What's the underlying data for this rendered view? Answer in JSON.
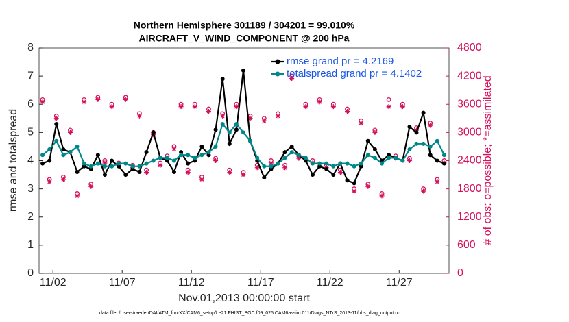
{
  "chart_data": {
    "type": "line",
    "title": "Northern Hemisphere 301189 / 304201 = 99.010%",
    "subtitle": "AIRCRAFT_V_WIND_COMPONENT @ 200 hPa",
    "x_label": "Nov.01,2013 00:00:00 start",
    "y_label": "rmse and totalspread",
    "y2_label": "# of obs: o=possible; *=assimilated",
    "footer": "data file: /Users/raeder/DAI/ATM_forcXX/CAM6_setup/f.e21.FHIST_BGC.f09_025.CAM6assim.011/Diags_NTrS_2013-11/obs_diag_output.nc",
    "legend": "northeast",
    "xlim": [
      0,
      29.6
    ],
    "xticks": [
      {
        "value": 1,
        "label": "11/02"
      },
      {
        "value": 6,
        "label": "11/07"
      },
      {
        "value": 11,
        "label": "11/12"
      },
      {
        "value": 16,
        "label": "11/17"
      },
      {
        "value": 21,
        "label": "11/22"
      },
      {
        "value": 26,
        "label": "11/27"
      }
    ],
    "ylim": [
      0,
      8
    ],
    "yticks": [
      0,
      1,
      2,
      3,
      4,
      5,
      6,
      7,
      8
    ],
    "y2lim": [
      0,
      4800
    ],
    "y2ticks": [
      0,
      600,
      1200,
      1800,
      2400,
      3000,
      3600,
      4200,
      4800
    ],
    "x": [
      0.25,
      0.75,
      1.25,
      1.75,
      2.25,
      2.75,
      3.25,
      3.75,
      4.25,
      4.75,
      5.25,
      5.75,
      6.25,
      6.75,
      7.25,
      7.75,
      8.25,
      8.75,
      9.25,
      9.75,
      10.25,
      10.75,
      11.25,
      11.75,
      12.25,
      12.75,
      13.25,
      13.75,
      14.25,
      14.75,
      15.25,
      15.75,
      16.25,
      16.75,
      17.25,
      17.75,
      18.25,
      18.75,
      19.25,
      19.75,
      20.25,
      20.75,
      21.25,
      21.75,
      22.25,
      22.75,
      23.25,
      23.75,
      24.25,
      24.75,
      25.25,
      25.75,
      26.25,
      26.75,
      27.25,
      27.75,
      28.25,
      28.75,
      29.25
    ],
    "series": [
      {
        "name": "rmse grand pr = 4.2169",
        "color": "#000000",
        "values": [
          3.9,
          4.0,
          5.3,
          4.4,
          4.3,
          3.6,
          3.8,
          3.7,
          4.2,
          3.5,
          4.0,
          3.8,
          3.5,
          3.7,
          3.6,
          4.3,
          5.0,
          4.1,
          4.0,
          3.6,
          4.3,
          3.9,
          4.0,
          4.5,
          4.2,
          5.1,
          6.9,
          4.6,
          5.1,
          7.2,
          4.7,
          4.0,
          3.4,
          3.7,
          3.9,
          4.3,
          4.5,
          4.2,
          4.0,
          3.5,
          3.8,
          3.7,
          3.5,
          3.9,
          3.3,
          3.2,
          3.8,
          4.7,
          4.4,
          4.0,
          4.2,
          4.1,
          4.0,
          5.2,
          5.0,
          5.7,
          4.2,
          4.0,
          3.9
        ]
      },
      {
        "name": "totalspread grand pr = 4.1402",
        "color": "#00878a",
        "values": [
          4.2,
          4.4,
          4.7,
          4.2,
          4.3,
          4.5,
          3.9,
          3.8,
          3.9,
          3.8,
          3.8,
          3.9,
          3.9,
          3.8,
          3.8,
          3.9,
          4.0,
          4.1,
          4.1,
          4.0,
          4.2,
          4.2,
          4.1,
          4.2,
          4.3,
          4.5,
          5.3,
          5.0,
          5.3,
          5.0,
          4.7,
          4.1,
          3.8,
          3.8,
          3.9,
          4.1,
          4.3,
          4.2,
          4.1,
          3.9,
          3.9,
          3.9,
          3.8,
          3.9,
          3.9,
          3.8,
          3.9,
          4.2,
          4.1,
          3.9,
          4.1,
          4.1,
          4.0,
          4.4,
          4.6,
          4.6,
          4.5,
          4.7,
          4.2
        ]
      }
    ],
    "y2_series": [
      {
        "marker": "circle",
        "color": "#d6105a",
        "axis": "y2",
        "values": [
          3700,
          2000,
          3350,
          2050,
          3050,
          1700,
          3700,
          1900,
          3750,
          2400,
          3600,
          2350,
          3750,
          2300,
          3400,
          2200,
          3000,
          2350,
          2500,
          2700,
          3600,
          2200,
          3600,
          2050,
          3500,
          2450,
          3400,
          2200,
          3600,
          2150,
          3350,
          2300,
          3300,
          2400,
          3400,
          2300,
          4200,
          2500,
          3600,
          2400,
          3700,
          2300,
          3600,
          2200,
          3500,
          1800,
          3250,
          1900,
          3050,
          1700,
          3700,
          2500,
          3600,
          2450,
          3100,
          1800,
          3200,
          2000,
          2400
        ]
      },
      {
        "marker": "asterisk",
        "color": "#d6105a",
        "axis": "y2",
        "values": [
          3650,
          1950,
          3300,
          2000,
          3000,
          1650,
          3650,
          1850,
          3700,
          2350,
          3550,
          2300,
          3700,
          2250,
          3350,
          2150,
          2950,
          2300,
          2450,
          2650,
          3550,
          2150,
          3550,
          2000,
          3450,
          2400,
          3350,
          2150,
          3550,
          2100,
          3300,
          2250,
          3250,
          2350,
          3350,
          2250,
          4150,
          2450,
          3550,
          2350,
          3650,
          2250,
          3550,
          2150,
          3450,
          1750,
          3200,
          1850,
          3000,
          1650,
          3550,
          2450,
          3550,
          2400,
          3050,
          1750,
          3150,
          1950,
          2350
        ]
      }
    ]
  }
}
